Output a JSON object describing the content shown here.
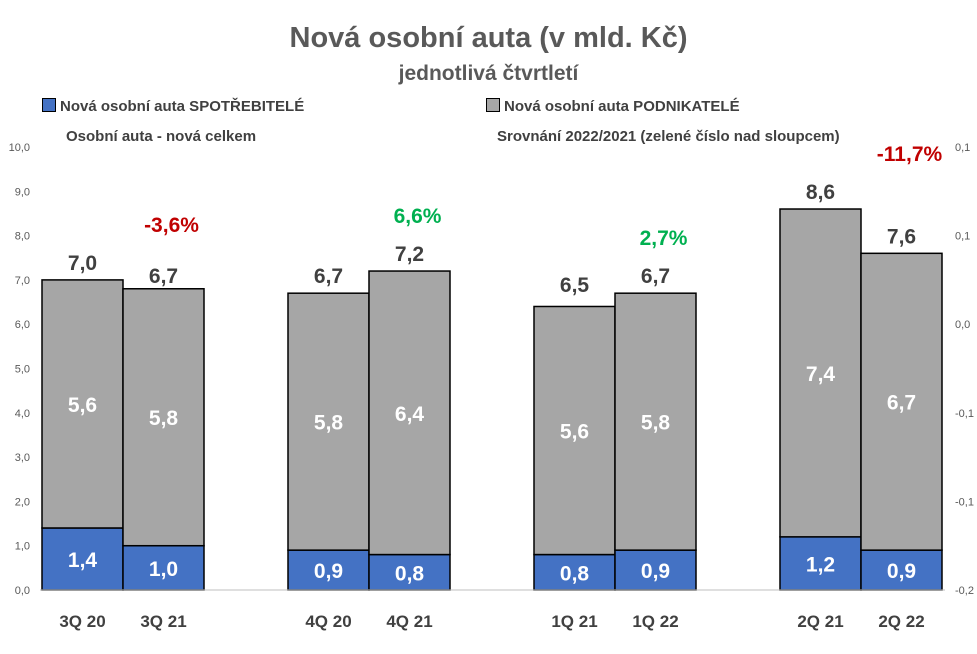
{
  "chart_data": {
    "type": "bar",
    "stacked": true,
    "title": "Nová osobní auta (v mld. Kč)",
    "subtitle": "jednotlivá čtvrtletí",
    "categories": [
      "3Q 20",
      "3Q 21",
      "4Q 20",
      "4Q 21",
      "1Q 21",
      "1Q 22",
      "2Q 21",
      "2Q 22"
    ],
    "series": [
      {
        "name": "Nová osobní auta SPOTŘEBITELÉ",
        "color": "#4472C4",
        "values": [
          1.4,
          1.0,
          0.9,
          0.8,
          0.8,
          0.9,
          1.2,
          0.9
        ],
        "labels": [
          "1,4",
          "1,0",
          "0,9",
          "0,8",
          "0,8",
          "0,9",
          "1,2",
          "0,9"
        ]
      },
      {
        "name": "Nová osobní auta PODNIKATELÉ",
        "color": "#A6A6A6",
        "values": [
          5.6,
          5.8,
          5.8,
          6.4,
          5.6,
          5.8,
          7.4,
          6.7
        ],
        "labels": [
          "5,6",
          "5,8",
          "5,8",
          "6,4",
          "5,6",
          "5,8",
          "7,4",
          "6,7"
        ]
      }
    ],
    "totals_series_name": "Osobní auta - nová celkem",
    "totals": [
      7.0,
      6.7,
      6.7,
      7.2,
      6.5,
      6.7,
      8.6,
      7.6
    ],
    "total_labels": [
      "7,0",
      "6,7",
      "6,7",
      "7,2",
      "6,5",
      "6,7",
      "8,6",
      "7,6"
    ],
    "comparison_series_name": "Srovnání 2022/2021 (zelené číslo nad sloupcem)",
    "comparison": [
      {
        "pair": [
          "3Q 20",
          "3Q 21"
        ],
        "value": -0.036,
        "label": "-3,6%",
        "color": "#C00000"
      },
      {
        "pair": [
          "4Q 20",
          "4Q 21"
        ],
        "value": 0.066,
        "label": "6,6%",
        "color": "#00B050"
      },
      {
        "pair": [
          "1Q 21",
          "1Q 22"
        ],
        "value": 0.027,
        "label": "2,7%",
        "color": "#00B050"
      },
      {
        "pair": [
          "2Q 21",
          "2Q 22"
        ],
        "value": -0.117,
        "label": "-11,7%",
        "color": "#C00000"
      }
    ],
    "y_left": {
      "min": 0,
      "max": 10,
      "ticks": [
        0,
        1,
        2,
        3,
        4,
        5,
        6,
        7,
        8,
        9,
        10
      ],
      "tick_labels": [
        "0,0",
        "1,0",
        "2,0",
        "3,0",
        "4,0",
        "5,0",
        "6,0",
        "7,0",
        "8,0",
        "9,0",
        "10,0"
      ]
    },
    "y_right": {
      "min": -0.2,
      "max": 0.1,
      "tick_labels": [
        "-0,2",
        "-0,1",
        "-0,1",
        "0,0",
        "0,1",
        "0,1"
      ]
    },
    "grid": false,
    "legend_position": "top"
  }
}
